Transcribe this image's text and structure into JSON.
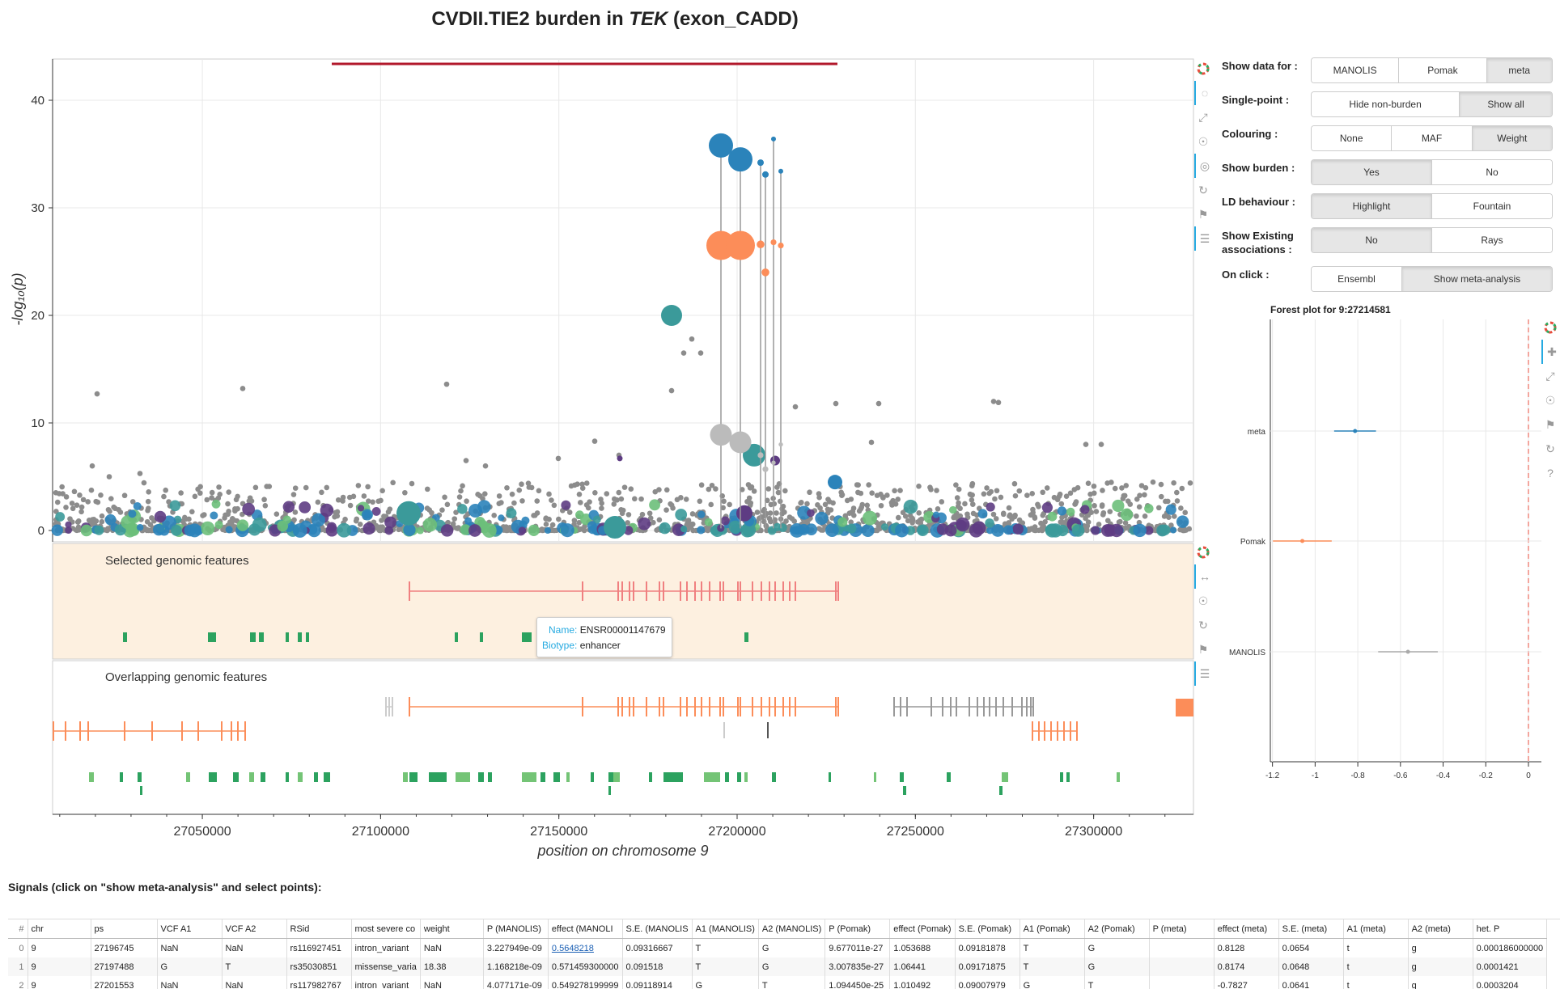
{
  "title": {
    "prefix": "CVDII.TIE2 burden in ",
    "gene": "TEK",
    "suffix": " (exon_CADD)"
  },
  "main_plot": {
    "ylabel": "-log₁₀(p)",
    "xlabel": "position on chromosome 9",
    "x_ticks": [
      "27050000",
      "27100000",
      "27150000",
      "27200000",
      "27250000",
      "27300000"
    ],
    "y_ticks": [
      "0",
      "10",
      "20",
      "30",
      "40"
    ]
  },
  "features": {
    "selected_title": "Selected genomic features",
    "overlapping_title": "Overlapping genomic features",
    "tooltip": {
      "name_key": "Name:",
      "name_val": "ENSR00001147679",
      "biotype_key": "Biotype:",
      "biotype_val": "enhancer"
    }
  },
  "controls": {
    "show_data_label": "Show data for :",
    "show_data": [
      "MANOLIS",
      "Pomak",
      "meta"
    ],
    "single_point_label": "Single-point :",
    "single_point": [
      "Hide non-burden",
      "Show all"
    ],
    "colouring_label": "Colouring :",
    "colouring": [
      "None",
      "MAF",
      "Weight"
    ],
    "show_burden_label": "Show burden :",
    "show_burden": [
      "Yes",
      "No"
    ],
    "ld_label": "LD behaviour :",
    "ld": [
      "Highlight",
      "Fountain"
    ],
    "existing_label_1": "Show Existing",
    "existing_label_2": "associations :",
    "existing": [
      "No",
      "Rays"
    ],
    "on_click_label": "On click :",
    "on_click": [
      "Ensembl",
      "Show meta-analysis"
    ]
  },
  "forest": {
    "title": "Forest plot for 9:27214581",
    "x_ticks": [
      "-1.2",
      "-1",
      "-0.8",
      "-0.6",
      "-0.4",
      "-0.2",
      "0"
    ]
  },
  "signals_title": "Signals (click on \"show meta-analysis\" and select points):",
  "table": {
    "headers": [
      "#",
      "chr",
      "ps",
      "VCF A1",
      "VCF A2",
      "RSid",
      "most severe co",
      "weight",
      "P (MANOLIS)",
      "effect (MANOLI",
      "S.E. (MANOLIS",
      "A1 (MANOLIS)",
      "A2 (MANOLIS)",
      "P (Pomak)",
      "effect (Pomak)",
      "S.E. (Pomak)",
      "A1 (Pomak)",
      "A2 (Pomak)",
      "P (meta)",
      "effect (meta)",
      "S.E. (meta)",
      "A1 (meta)",
      "A2 (meta)",
      "het. P"
    ],
    "rows": [
      [
        "0",
        "9",
        "27196745",
        "NaN",
        "NaN",
        "rs116927451",
        "intron_variant",
        "NaN",
        "3.227949e-09",
        "0.5648218",
        "0.09316667",
        "T",
        "G",
        "9.677011e-27",
        "1.053688",
        "0.09181878",
        "T",
        "G",
        "",
        "0.8128",
        "0.0654",
        "t",
        "g",
        "0.000186000000"
      ],
      [
        "1",
        "9",
        "27197488",
        "G",
        "T",
        "rs35030851",
        "missense_varia",
        "18.38",
        "1.168218e-09",
        "0.571459300000",
        "0.091518",
        "T",
        "G",
        "3.007835e-27",
        "1.06441",
        "0.09171875",
        "T",
        "G",
        "",
        "0.8174",
        "0.0648",
        "t",
        "g",
        "0.0001421"
      ],
      [
        "2",
        "9",
        "27201553",
        "NaN",
        "NaN",
        "rs117982767",
        "intron_variant",
        "NaN",
        "4.077171e-09",
        "0.549278199999",
        "0.09118914",
        "G",
        "T",
        "1.094450e-25",
        "1.010492",
        "0.09007979",
        "G",
        "T",
        "",
        "-0.7827",
        "0.0641",
        "t",
        "g",
        "0.0003204"
      ]
    ]
  },
  "colors": {
    "orange": "#fc8d59",
    "blue": "#2b83ba",
    "grey": "#8c8c8c",
    "teal": "#3b9a9a",
    "burden_line": "#b2182b",
    "panel_bg": "#fdf0e0"
  }
}
